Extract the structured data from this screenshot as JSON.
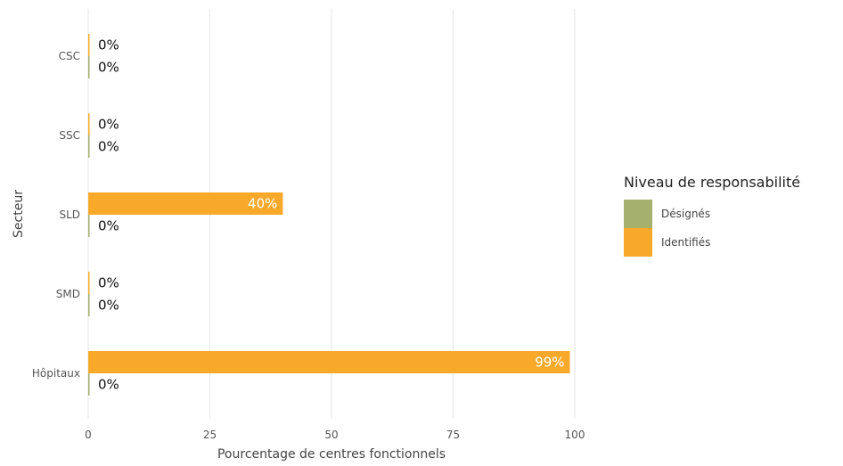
{
  "chart_data": {
    "type": "bar",
    "orientation": "horizontal",
    "categories": [
      "CSC",
      "SSC",
      "SLD",
      "SMD",
      "Hôpitaux"
    ],
    "series": [
      {
        "name": "Identifiés",
        "color": "#f9a929",
        "values": [
          0,
          0,
          40,
          0,
          99
        ],
        "labels": [
          "0%",
          "0%",
          "40%",
          "0%",
          "99%"
        ]
      },
      {
        "name": "Désignés",
        "color": "#a4b06b",
        "values": [
          0,
          0,
          0,
          0,
          0
        ],
        "labels": [
          "0%",
          "0%",
          "0%",
          "0%",
          "0%"
        ]
      }
    ],
    "xlabel": "Pourcentage de centres fonctionnels",
    "ylabel": "Secteur",
    "xlim": [
      0,
      100
    ],
    "xticks": [
      0,
      25,
      50,
      75,
      100
    ],
    "grid": "vertical",
    "legend": {
      "title": "Niveau de responsabilité",
      "position": "right",
      "entries": [
        {
          "name": "Désignés",
          "color": "#a4b06b"
        },
        {
          "name": "Identifiés",
          "color": "#f9a929"
        }
      ]
    }
  }
}
